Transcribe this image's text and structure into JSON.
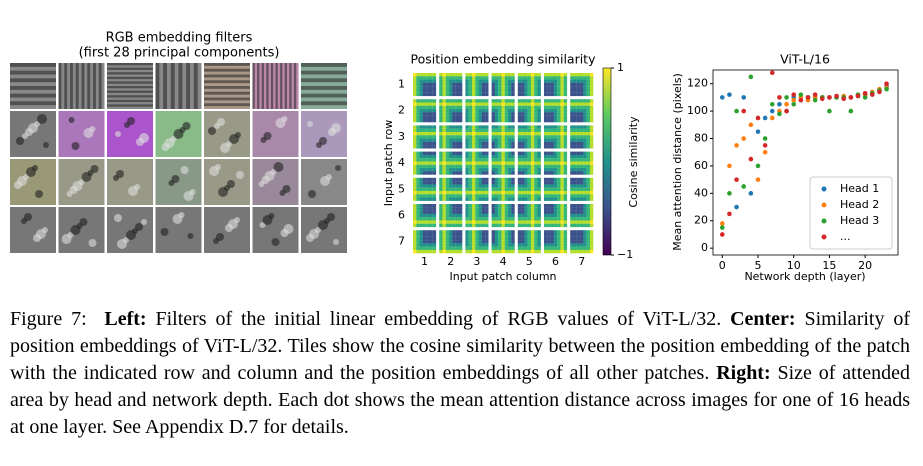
{
  "figure": {
    "left": {
      "title": "RGB embedding filters",
      "subtitle": "(first 28 principal components)"
    },
    "center": {
      "title": "Position embedding similarity",
      "xlabel": "Input patch column",
      "ylabel": "Input patch row",
      "columns": [
        "1",
        "2",
        "3",
        "4",
        "5",
        "6",
        "7"
      ],
      "rows": [
        "1",
        "2",
        "3",
        "4",
        "5",
        "6",
        "7"
      ],
      "colorbar_label": "Cosine similarity",
      "clim": [
        -1,
        1
      ],
      "cticks": [
        1,
        {
          "value": -1,
          "label": "−1"
        }
      ]
    }
  },
  "chart_data": {
    "type": "scatter",
    "title": "ViT-L/16",
    "xlabel": "Network depth (layer)",
    "ylabel": "Mean attention distance (pixels)",
    "x": [
      0,
      1,
      2,
      3,
      4,
      5,
      6,
      7,
      8,
      9,
      10,
      11,
      12,
      13,
      14,
      15,
      16,
      17,
      18,
      19,
      20,
      21,
      22,
      23
    ],
    "series": [
      {
        "name": "Head 1",
        "color": "#1f77b4",
        "values": [
          110,
          112,
          30,
          110,
          40,
          85,
          95,
          100,
          105,
          100,
          110,
          108,
          110,
          110,
          110,
          110,
          110,
          110,
          110,
          111,
          112,
          113,
          115,
          118
        ]
      },
      {
        "name": "Head 2",
        "color": "#ff7f0e",
        "values": [
          18,
          60,
          75,
          80,
          90,
          50,
          70,
          95,
          100,
          105,
          108,
          110,
          108,
          110,
          110,
          110,
          110,
          111,
          110,
          112,
          112,
          114,
          116,
          117
        ]
      },
      {
        "name": "Head 3",
        "color": "#2ca02c",
        "values": [
          15,
          40,
          100,
          45,
          125,
          60,
          80,
          105,
          98,
          110,
          105,
          112,
          110,
          108,
          110,
          100,
          110,
          110,
          100,
          112,
          110,
          113,
          115,
          116
        ]
      },
      {
        "name": "...",
        "color": "#d62728",
        "values": [
          10,
          25,
          50,
          100,
          65,
          95,
          75,
          128,
          110,
          100,
          112,
          108,
          110,
          112,
          109,
          110,
          111,
          109,
          110,
          111,
          113,
          112,
          114,
          120
        ]
      }
    ],
    "xlim": [
      -1.3,
      24.6
    ],
    "xticks": [
      0,
      5,
      10,
      15,
      20
    ],
    "ylim": [
      -5,
      130
    ],
    "yticks": [
      0,
      20,
      40,
      60,
      80,
      100,
      120
    ],
    "legend": "lower right"
  },
  "caption": [
    {
      "text": "Figure 7:  ",
      "bold": false
    },
    {
      "text": "Left:",
      "bold": true
    },
    {
      "text": " Filters of the initial linear embedding of RGB values of ViT-L/32. ",
      "bold": false
    },
    {
      "text": "Center:",
      "bold": true
    },
    {
      "text": " Similarity of position embeddings of ViT-L/32. Tiles show the cosine similarity between the position embedding of the patch with the indicated row and column and the position embeddings of all other patches. ",
      "bold": false
    },
    {
      "text": "Right:",
      "bold": true
    },
    {
      "text": " Size of attended area by head and network depth. Each dot shows the mean attention distance across images for one of 16 heads at one layer. See Appendix D.7 for details.",
      "bold": false
    }
  ]
}
